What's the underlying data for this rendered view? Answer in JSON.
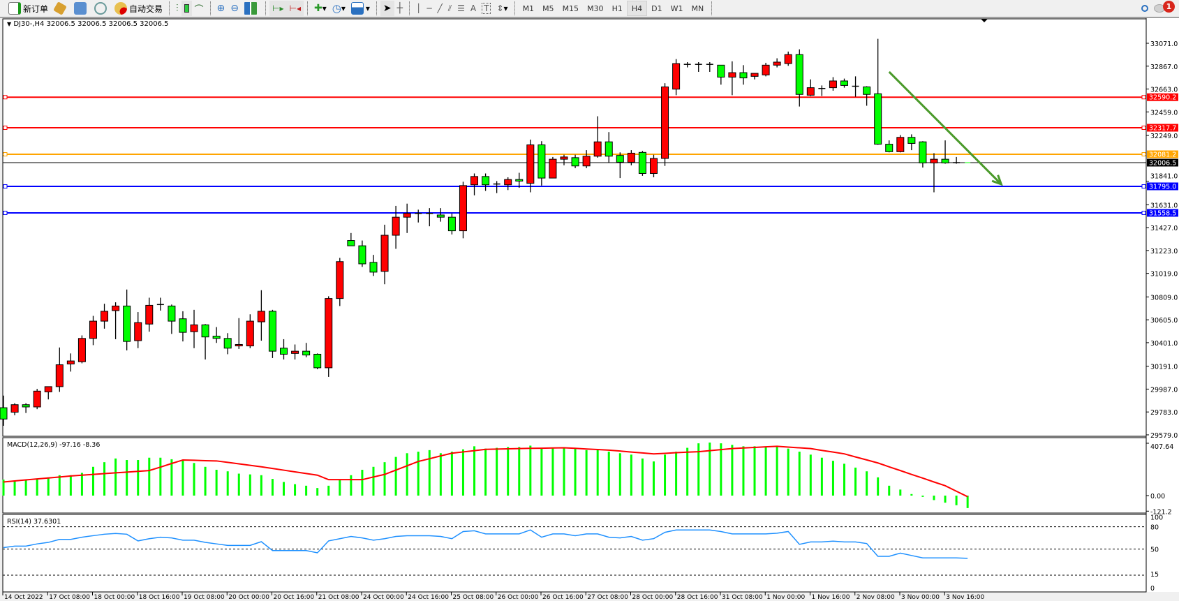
{
  "toolbar": {
    "new_order": "新订单",
    "auto_trading": "自动交易",
    "icons": [
      "new-order-icon",
      "market-watch-icon",
      "data-window-icon",
      "navigator-icon",
      "auto-trading-icon",
      "bar-chart-icon",
      "candlestick-icon",
      "line-chart-icon",
      "zoom-in-icon",
      "zoom-out-icon",
      "tile-windows-icon",
      "auto-scroll-icon",
      "chart-shift-icon",
      "indicators-icon",
      "periods-icon",
      "templates-icon",
      "cursor-icon",
      "crosshair-icon",
      "vertical-line-icon",
      "horizontal-line-icon",
      "trendline-icon",
      "equidistant-channel-icon",
      "fibonacci-icon",
      "text-icon",
      "text-label-icon",
      "arrows-icon"
    ],
    "timeframes": [
      "M1",
      "M5",
      "M15",
      "M30",
      "H1",
      "H4",
      "D1",
      "W1",
      "MN"
    ],
    "active_timeframe": "H4",
    "notification_count": "1"
  },
  "chart_header": "DJ30-,H4  32006.5 32006.5 32006.5 32006.5",
  "chart_data": {
    "type": "candlestick",
    "symbol": "DJ30-",
    "timeframe": "H4",
    "colors": {
      "up": "#ff0000",
      "down": "#00ff00",
      "background": "#ffffff"
    },
    "ylim": [
      29579,
      33172
    ],
    "price_ticks": [
      "33071.0",
      "32867.0",
      "32663.0",
      "32459.0",
      "32249.0",
      "31841.0",
      "31631.0",
      "31427.0",
      "31223.0",
      "31019.0",
      "30809.0",
      "30605.0",
      "30401.0",
      "30191.0",
      "29987.0",
      "29783.0",
      "29579.0"
    ],
    "time_labels": [
      "14 Oct 2022",
      "17 Oct 08:00",
      "18 Oct 00:00",
      "18 Oct 16:00",
      "19 Oct 08:00",
      "20 Oct 00:00",
      "20 Oct 16:00",
      "21 Oct 08:00",
      "24 Oct 00:00",
      "24 Oct 16:00",
      "25 Oct 08:00",
      "26 Oct 00:00",
      "26 Oct 16:00",
      "27 Oct 08:00",
      "28 Oct 00:00",
      "28 Oct 16:00",
      "31 Oct 08:00",
      "1 Nov 00:00",
      "1 Nov 16:00",
      "2 Nov 08:00",
      "3 Nov 00:00",
      "3 Nov 16:00"
    ],
    "ohlc": [
      [
        29821,
        29929,
        29660,
        29720
      ],
      [
        29781,
        29861,
        29754,
        29848
      ],
      [
        29848,
        29861,
        29774,
        29828
      ],
      [
        29828,
        29989,
        29808,
        29969
      ],
      [
        29962,
        30009,
        29895,
        30009
      ],
      [
        30009,
        30358,
        29962,
        30204
      ],
      [
        30211,
        30305,
        30143,
        30238
      ],
      [
        30231,
        30466,
        30217,
        30439
      ],
      [
        30439,
        30640,
        30379,
        30593
      ],
      [
        30593,
        30748,
        30526,
        30681
      ],
      [
        30687,
        30761,
        30432,
        30728
      ],
      [
        30728,
        30875,
        30332,
        30412
      ],
      [
        30419,
        30674,
        30352,
        30580
      ],
      [
        30567,
        30802,
        30499,
        30734
      ],
      [
        30741,
        30802,
        30687,
        30741
      ],
      [
        30728,
        30741,
        30479,
        30593
      ],
      [
        30614,
        30681,
        30412,
        30493
      ],
      [
        30499,
        30694,
        30352,
        30560
      ],
      [
        30560,
        30567,
        30251,
        30452
      ],
      [
        30459,
        30540,
        30399,
        30439
      ],
      [
        30439,
        30486,
        30298,
        30352
      ],
      [
        30372,
        30620,
        30345,
        30385
      ],
      [
        30372,
        30654,
        30352,
        30593
      ],
      [
        30587,
        30869,
        30419,
        30681
      ],
      [
        30681,
        30694,
        30264,
        30325
      ],
      [
        30352,
        30432,
        30251,
        30298
      ],
      [
        30305,
        30385,
        30251,
        30325
      ],
      [
        30325,
        30399,
        30271,
        30291
      ],
      [
        30298,
        30305,
        30164,
        30177
      ],
      [
        30177,
        30815,
        30096,
        30795
      ],
      [
        30795,
        31157,
        30728,
        31124
      ],
      [
        31312,
        31379,
        31265,
        31265
      ],
      [
        31265,
        31312,
        31077,
        31104
      ],
      [
        31117,
        31184,
        30996,
        31030
      ],
      [
        31037,
        31453,
        30922,
        31359
      ],
      [
        31359,
        31621,
        31238,
        31520
      ],
      [
        31520,
        31641,
        31379,
        31554
      ],
      [
        31554,
        31587,
        31473,
        31554
      ],
      [
        31554,
        31601,
        31439,
        31554
      ],
      [
        31540,
        31601,
        31480,
        31520
      ],
      [
        31520,
        31554,
        31366,
        31399
      ],
      [
        31399,
        31836,
        31332,
        31802
      ],
      [
        31809,
        31910,
        31715,
        31883
      ],
      [
        31883,
        31910,
        31755,
        31809
      ],
      [
        31816,
        31842,
        31735,
        31816
      ],
      [
        31809,
        31876,
        31762,
        31856
      ],
      [
        31856,
        31916,
        31782,
        31842
      ],
      [
        31822,
        32212,
        31742,
        32165
      ],
      [
        32165,
        32198,
        31802,
        31869
      ],
      [
        31869,
        32057,
        31869,
        32037
      ],
      [
        32037,
        32077,
        31983,
        32057
      ],
      [
        32051,
        32077,
        31957,
        31977
      ],
      [
        31977,
        32118,
        31957,
        32064
      ],
      [
        32064,
        32420,
        32051,
        32192
      ],
      [
        32192,
        32279,
        32004,
        32064
      ],
      [
        32071,
        32098,
        31869,
        32010
      ],
      [
        32010,
        32118,
        31983,
        32091
      ],
      [
        32098,
        32111,
        31889,
        31910
      ],
      [
        31910,
        32077,
        31876,
        32044
      ],
      [
        32044,
        32715,
        31977,
        32682
      ],
      [
        32662,
        32930,
        32608,
        32890
      ],
      [
        32883,
        32903,
        32856,
        32883
      ],
      [
        32883,
        32903,
        32816,
        32883
      ],
      [
        32883,
        32903,
        32816,
        32883
      ],
      [
        32876,
        32876,
        32702,
        32769
      ],
      [
        32769,
        32910,
        32608,
        32809
      ],
      [
        32809,
        32876,
        32702,
        32762
      ],
      [
        32776,
        32789,
        32749,
        32803
      ],
      [
        32789,
        32897,
        32776,
        32876
      ],
      [
        32876,
        32937,
        32856,
        32903
      ],
      [
        32890,
        32997,
        32870,
        32970
      ],
      [
        32970,
        33017,
        32507,
        32615
      ],
      [
        32608,
        32749,
        32601,
        32675
      ],
      [
        32668,
        32695,
        32601,
        32668
      ],
      [
        32675,
        32769,
        32648,
        32735
      ],
      [
        32735,
        32756,
        32675,
        32695
      ],
      [
        32688,
        32776,
        32594,
        32688
      ],
      [
        32682,
        32688,
        32514,
        32615
      ],
      [
        32621,
        33111,
        32165,
        32171
      ],
      [
        32171,
        32205,
        32098,
        32104
      ],
      [
        32104,
        32252,
        32098,
        32232
      ],
      [
        32232,
        32259,
        32118,
        32178
      ],
      [
        32192,
        32198,
        31963,
        32004
      ],
      [
        32004,
        32091,
        31742,
        32037
      ],
      [
        32037,
        32205,
        31997,
        32004
      ],
      [
        32006.5,
        32057,
        31997,
        32006.5
      ],
      [
        32006.5,
        32006.5,
        32006.5,
        32006.5
      ]
    ],
    "horizontal_lines": [
      {
        "price": "32590.2",
        "color": "#ff0000"
      },
      {
        "price": "32317.7",
        "color": "#ff0000"
      },
      {
        "price": "32081.2",
        "color": "#ffa500"
      },
      {
        "price": "32006.5",
        "color": "#000000",
        "role": "bid"
      },
      {
        "price": "31795.0",
        "color": "#0000ff"
      },
      {
        "price": "31558.5",
        "color": "#0000ff"
      }
    ],
    "trend_arrow": {
      "color": "#4a9a2a",
      "from": {
        "bar": 80,
        "price": 32816
      },
      "to": {
        "bar": 90,
        "price": 31814
      }
    },
    "macd": {
      "label": "MACD(12,26,9) -97.16 -8.36",
      "ticks": [
        "407.64",
        "0.00",
        "-121.2"
      ],
      "histogram_color": "#00ff00",
      "signal_color": "#ff0000",
      "histogram": [
        124,
        112,
        124,
        130,
        142,
        159,
        159,
        177,
        224,
        260,
        289,
        277,
        277,
        295,
        295,
        283,
        277,
        254,
        224,
        201,
        189,
        171,
        165,
        159,
        130,
        106,
        89,
        77,
        59,
        77,
        124,
        159,
        201,
        224,
        260,
        301,
        330,
        342,
        354,
        330,
        342,
        360,
        384,
        366,
        372,
        378,
        378,
        389,
        372,
        372,
        372,
        366,
        354,
        354,
        342,
        330,
        319,
        289,
        266,
        319,
        342,
        372,
        407,
        413,
        407,
        395,
        384,
        384,
        378,
        384,
        366,
        342,
        319,
        295,
        271,
        248,
        218,
        189,
        142,
        77,
        47,
        12,
        -10,
        -35,
        -55,
        -75,
        -97.16
      ],
      "signal": [
        106,
        114,
        122,
        130,
        137,
        145,
        153,
        159,
        165,
        171,
        177,
        183,
        189,
        195,
        222,
        250,
        277,
        275,
        272,
        270,
        259,
        247,
        236,
        224,
        211,
        198,
        185,
        172,
        159,
        124,
        124,
        124,
        124,
        145,
        165,
        199,
        232,
        266,
        287,
        309,
        330,
        340,
        350,
        360,
        362,
        364,
        366,
        368,
        369,
        371,
        372,
        368,
        363,
        359,
        354,
        347,
        339,
        332,
        325,
        329,
        334,
        338,
        342,
        350,
        358,
        366,
        371,
        375,
        380,
        384,
        378,
        372,
        366,
        352,
        339,
        325,
        301,
        278,
        254,
        224,
        195,
        165,
        136,
        106,
        77,
        34,
        -8.36
      ]
    },
    "rsi": {
      "label": "RSI(14) 37.6301",
      "ticks": [
        "100",
        "80",
        "50",
        "15",
        "0"
      ],
      "levels": [
        80,
        50,
        15
      ],
      "color": "#1e90ff",
      "values": [
        52,
        54,
        54,
        57,
        59,
        63,
        63,
        66,
        68,
        70,
        71,
        70,
        61,
        64,
        66,
        65,
        62,
        62,
        59,
        57,
        55,
        55,
        55,
        60,
        48,
        48,
        48,
        48,
        45,
        61,
        64,
        67,
        65,
        62,
        64,
        67,
        68,
        68,
        68,
        67,
        64,
        73.6,
        74.6,
        70.4,
        70.4,
        70.4,
        70.4,
        75.7,
        66,
        70.4,
        70.4,
        68,
        70.4,
        70.4,
        66,
        65,
        67,
        62,
        64,
        72.5,
        75.7,
        75.7,
        75.7,
        75.7,
        73.6,
        70.4,
        70.4,
        70.4,
        70.4,
        71.4,
        73.6,
        56.4,
        59.6,
        59.6,
        60.7,
        59.6,
        59.6,
        57.5,
        40.3,
        40.3,
        44.6,
        41.4,
        38.2,
        38.2,
        38.2,
        38.2,
        37.63
      ]
    }
  }
}
